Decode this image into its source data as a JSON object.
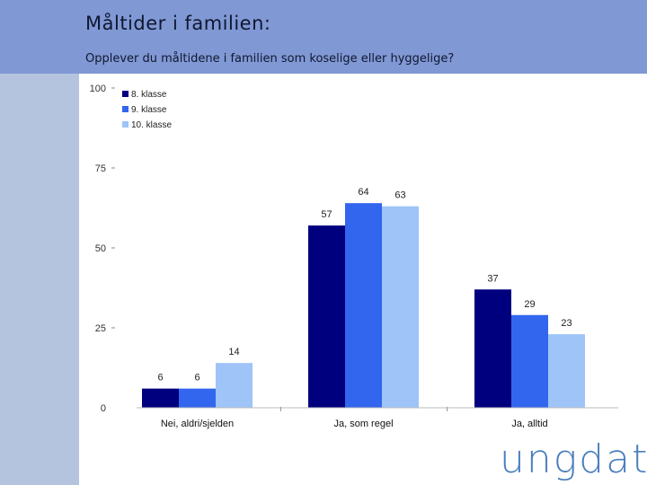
{
  "slide": {
    "title": "Måltider i familien:",
    "subtitle": "Opplever du måltidene i familien som koselige eller hyggelige?",
    "logo": "ungdata",
    "colors": {
      "header": "#8098d4",
      "sidebar": "#b4c4de"
    }
  },
  "chart_data": {
    "type": "bar",
    "title": "",
    "xlabel": "",
    "ylabel": "",
    "ylim": [
      0,
      100
    ],
    "yticks": [
      "0",
      "25",
      "50",
      "75",
      "100"
    ],
    "categories": [
      "Nei, aldri/sjelden",
      "Ja, som regel",
      "Ja, alltid"
    ],
    "series": [
      {
        "name": "8. klasse",
        "color": "#00007e",
        "values": [
          6,
          57,
          37
        ]
      },
      {
        "name": "9. klasse",
        "color": "#3366ee",
        "values": [
          6,
          64,
          29
        ]
      },
      {
        "name": "10. klasse",
        "color": "#9ec4f8",
        "values": [
          14,
          63,
          23
        ]
      }
    ],
    "legend": "top-left"
  }
}
